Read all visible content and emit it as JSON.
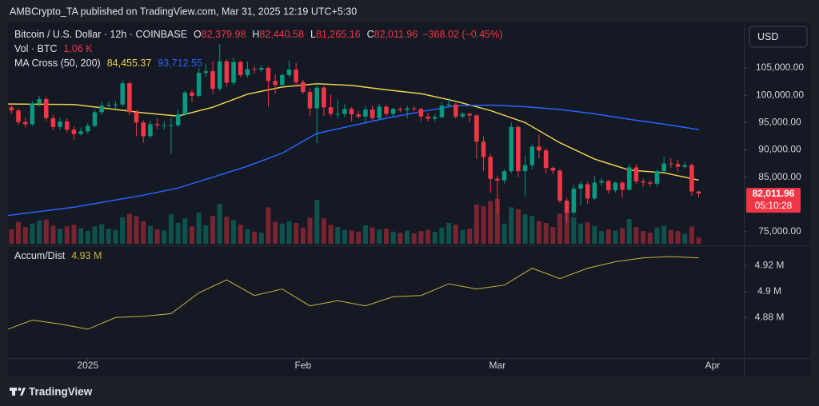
{
  "header": {
    "publisher": "AMBCrypto_TA published on TradingView.com, Mar 31, 2025 12:19 UTC+5:30",
    "currency_button": "USD",
    "brand": "TradingView"
  },
  "chart_data": {
    "type": "candlestick",
    "symbol": "Bitcoin / U.S. Dollar · 12h · COINBASE",
    "ohlc_legend": [
      {
        "label": "O",
        "value": "82,379.98"
      },
      {
        "label": "H",
        "value": "82,440.58"
      },
      {
        "label": "L",
        "value": "81,265.16"
      },
      {
        "label": "C",
        "value": "82,011.96"
      }
    ],
    "change": "−368.02 (−0.45%)",
    "up_color": "#089981",
    "down_color": "#f23645",
    "candles": [
      [
        98200,
        99100,
        96900,
        97800
      ],
      [
        97800,
        98400,
        96600,
        97200
      ],
      [
        97200,
        97600,
        94600,
        95100
      ],
      [
        95100,
        95900,
        94100,
        94700
      ],
      [
        94700,
        99000,
        94400,
        98500
      ],
      [
        98500,
        99900,
        97900,
        99300
      ],
      [
        99300,
        99700,
        95300,
        95800
      ],
      [
        95800,
        96400,
        93500,
        94200
      ],
      [
        94200,
        95900,
        93700,
        95200
      ],
      [
        95200,
        95700,
        93200,
        93700
      ],
      [
        93700,
        94300,
        91800,
        92900
      ],
      [
        92900,
        94100,
        92600,
        93400
      ],
      [
        93400,
        94900,
        92900,
        94400
      ],
      [
        94400,
        97300,
        94100,
        96900
      ],
      [
        96900,
        98800,
        96400,
        98100
      ],
      [
        98100,
        98900,
        97600,
        98200
      ],
      [
        98200,
        98900,
        97500,
        98300
      ],
      [
        98300,
        102700,
        97900,
        102200
      ],
      [
        102200,
        102500,
        96300,
        96900
      ],
      [
        96900,
        97300,
        92500,
        95000
      ],
      [
        95000,
        95400,
        91300,
        92500
      ],
      [
        92500,
        95300,
        92200,
        94700
      ],
      [
        94700,
        95800,
        93800,
        94500
      ],
      [
        94500,
        95200,
        93700,
        94500
      ],
      [
        94500,
        95900,
        89300,
        94500
      ],
      [
        94500,
        97300,
        94200,
        96500
      ],
      [
        96500,
        100800,
        96200,
        100500
      ],
      [
        100500,
        101000,
        98800,
        99900
      ],
      [
        99900,
        105000,
        99700,
        104100
      ],
      [
        104100,
        105800,
        103300,
        104400
      ],
      [
        104400,
        106300,
        100200,
        101200
      ],
      [
        101200,
        109400,
        100800,
        106200
      ],
      [
        106200,
        106500,
        101500,
        102300
      ],
      [
        102300,
        106900,
        101900,
        106100
      ],
      [
        106100,
        106300,
        103300,
        103700
      ],
      [
        103700,
        106200,
        103200,
        104800
      ],
      [
        104800,
        105400,
        104000,
        104700
      ],
      [
        104700,
        105500,
        104300,
        105000
      ],
      [
        105000,
        105300,
        97800,
        102600
      ],
      [
        102600,
        103800,
        100300,
        101900
      ],
      [
        101900,
        104000,
        101500,
        103700
      ],
      [
        103700,
        106400,
        103300,
        104700
      ],
      [
        104700,
        105900,
        101500,
        102400
      ],
      [
        102400,
        102800,
        100200,
        100600
      ],
      [
        100600,
        101200,
        96200,
        97600
      ],
      [
        97600,
        102400,
        91200,
        101400
      ],
      [
        101400,
        101700,
        96200,
        97800
      ],
      [
        97800,
        100100,
        96100,
        96600
      ],
      [
        96600,
        99200,
        95700,
        96600
      ],
      [
        96600,
        98400,
        96000,
        97500
      ],
      [
        97500,
        97800,
        95200,
        96500
      ],
      [
        96500,
        97200,
        95700,
        96100
      ],
      [
        96100,
        98000,
        94800,
        97400
      ],
      [
        97400,
        98100,
        95400,
        95800
      ],
      [
        95800,
        98400,
        95600,
        97900
      ],
      [
        97900,
        98300,
        96200,
        96600
      ],
      [
        96600,
        97700,
        96100,
        97500
      ],
      [
        97500,
        97800,
        96900,
        97300
      ],
      [
        97300,
        98100,
        95800,
        97600
      ],
      [
        97600,
        98000,
        97100,
        97500
      ],
      [
        97500,
        97700,
        95300,
        96100
      ],
      [
        96100,
        96800,
        95200,
        95700
      ],
      [
        95700,
        96600,
        95300,
        96000
      ],
      [
        96000,
        98700,
        95800,
        98100
      ],
      [
        98100,
        99500,
        97800,
        98300
      ],
      [
        98300,
        98600,
        95700,
        96100
      ],
      [
        96100,
        96900,
        95800,
        96600
      ],
      [
        96600,
        96800,
        95000,
        96300
      ],
      [
        96300,
        96500,
        88300,
        91500
      ],
      [
        91500,
        92500,
        86100,
        88700
      ],
      [
        88700,
        89300,
        82200,
        84700
      ],
      [
        84700,
        85200,
        78300,
        84400
      ],
      [
        84400,
        86500,
        83800,
        86100
      ],
      [
        86100,
        95000,
        85700,
        94200
      ],
      [
        94200,
        94400,
        85000,
        86100
      ],
      [
        86100,
        88900,
        81500,
        87200
      ],
      [
        87200,
        91000,
        86400,
        90600
      ],
      [
        90600,
        92800,
        88400,
        89900
      ],
      [
        89900,
        90300,
        85700,
        86700
      ],
      [
        86700,
        87000,
        85500,
        86200
      ],
      [
        86200,
        86400,
        80200,
        80700
      ],
      [
        80700,
        81200,
        76600,
        78500
      ],
      [
        78500,
        83600,
        78000,
        82900
      ],
      [
        82900,
        84300,
        79900,
        83700
      ],
      [
        83700,
        84200,
        80100,
        81100
      ],
      [
        81100,
        85300,
        80800,
        84000
      ],
      [
        84000,
        84800,
        83500,
        84300
      ],
      [
        84300,
        84500,
        82000,
        82600
      ],
      [
        82600,
        84200,
        82200,
        84000
      ],
      [
        84000,
        84300,
        81200,
        82700
      ],
      [
        82700,
        87400,
        82500,
        86800
      ],
      [
        86800,
        87400,
        83700,
        84200
      ],
      [
        84200,
        84700,
        83200,
        84000
      ],
      [
        84000,
        84400,
        83300,
        83800
      ],
      [
        83800,
        86400,
        83200,
        86100
      ],
      [
        86100,
        88700,
        85900,
        87500
      ],
      [
        87500,
        88500,
        86700,
        87400
      ],
      [
        87400,
        88200,
        85900,
        86900
      ],
      [
        86900,
        87800,
        86600,
        87200
      ],
      [
        87200,
        87500,
        81600,
        82380
      ],
      [
        82379.98,
        82440.58,
        81265.16,
        82011.96
      ]
    ],
    "xlim": [
      0.5,
      106.5
    ],
    "xticks": [
      {
        "value": 12,
        "label": "2025"
      },
      {
        "value": 43,
        "label": "Feb"
      },
      {
        "value": 71,
        "label": "Mar"
      },
      {
        "value": 102,
        "label": "Apr"
      }
    ],
    "ylim": [
      72800,
      113350
    ],
    "yticks": [
      {
        "value": 75000,
        "label": "75,000.00"
      },
      {
        "value": 85000,
        "label": "85,000.00"
      },
      {
        "value": 90000,
        "label": "90,000.00"
      },
      {
        "value": 95000,
        "label": "95,000.00"
      },
      {
        "value": 100000,
        "label": "100,000.00"
      },
      {
        "value": 105000,
        "label": "105,000.00"
      }
    ],
    "last_price_label": "82,011.96",
    "countdown": "05:10:28",
    "volume": {
      "name": "Vol · BTC",
      "last_label": "1.06 K",
      "ylim": [
        0,
        9000
      ],
      "values": [
        3200,
        2500,
        3800,
        2900,
        3500,
        4000,
        4200,
        3100,
        2600,
        3000,
        3300,
        2700,
        2200,
        3000,
        3400,
        2600,
        2400,
        4600,
        5200,
        4800,
        3900,
        3100,
        2500,
        2300,
        5100,
        3600,
        4400,
        3000,
        5400,
        3200,
        4800,
        6900,
        4700,
        4100,
        3300,
        2500,
        2100,
        1900,
        6300,
        3800,
        3500,
        3900,
        3600,
        2800,
        4500,
        7600,
        4400,
        3300,
        2900,
        2400,
        2300,
        2100,
        3200,
        2800,
        2500,
        2600,
        2100,
        1900,
        2300,
        1800,
        2200,
        2400,
        2100,
        2800,
        3600,
        3300,
        2400,
        2600,
        6800,
        6500,
        7400,
        7800,
        3500,
        6300,
        6000,
        5100,
        4800,
        3900,
        3600,
        2900,
        5200,
        5900,
        4600,
        3500,
        3700,
        3100,
        2200,
        2500,
        2300,
        2700,
        4300,
        2900,
        2200,
        1900,
        2800,
        3100,
        2400,
        2200,
        1700,
        3000,
        1060
      ]
    },
    "moving_averages": {
      "name": "MA Cross (50, 200)",
      "x": [
        0,
        10,
        20,
        25,
        30,
        35,
        40,
        45,
        50,
        55,
        60,
        65,
        70,
        75,
        80,
        85,
        90,
        95,
        100
      ],
      "series": [
        {
          "color": "#f0d34a",
          "value_label": "84,455.37",
          "values": [
            98400,
            98300,
            96800,
            96200,
            97800,
            100200,
            101500,
            102100,
            101800,
            101000,
            100300,
            98900,
            97200,
            95000,
            91300,
            88300,
            86300,
            85800,
            84455.37
          ]
        },
        {
          "color": "#2962ff",
          "value_label": "93,712.55",
          "values": [
            77900,
            79500,
            81700,
            83000,
            85000,
            87000,
            89400,
            93000,
            94400,
            95800,
            97000,
            98100,
            98200,
            97900,
            97400,
            96600,
            95600,
            94700,
            93712.55
          ]
        }
      ]
    },
    "accum_dist": {
      "name": "Accum/Dist",
      "color": "#c9b53a",
      "last_label": "4.93 M",
      "x": [
        0,
        4,
        8,
        12,
        16,
        20,
        24,
        28,
        32,
        36,
        40,
        44,
        48,
        52,
        56,
        60,
        64,
        68,
        72,
        76,
        80,
        84,
        88,
        92,
        96,
        100
      ],
      "values": [
        4.87,
        4.878,
        4.875,
        4.871,
        4.88,
        4.881,
        4.883,
        4.899,
        4.909,
        4.897,
        4.902,
        4.889,
        4.893,
        4.889,
        4.896,
        4.897,
        4.906,
        4.902,
        4.905,
        4.918,
        4.91,
        4.918,
        4.923,
        4.926,
        4.927,
        4.926
      ],
      "ylim": [
        4.85,
        4.935
      ],
      "yticks": [
        {
          "value": 4.88,
          "label": "4.88 M"
        },
        {
          "value": 4.9,
          "label": "4.9 M"
        },
        {
          "value": 4.92,
          "label": "4.92 M"
        }
      ]
    }
  }
}
